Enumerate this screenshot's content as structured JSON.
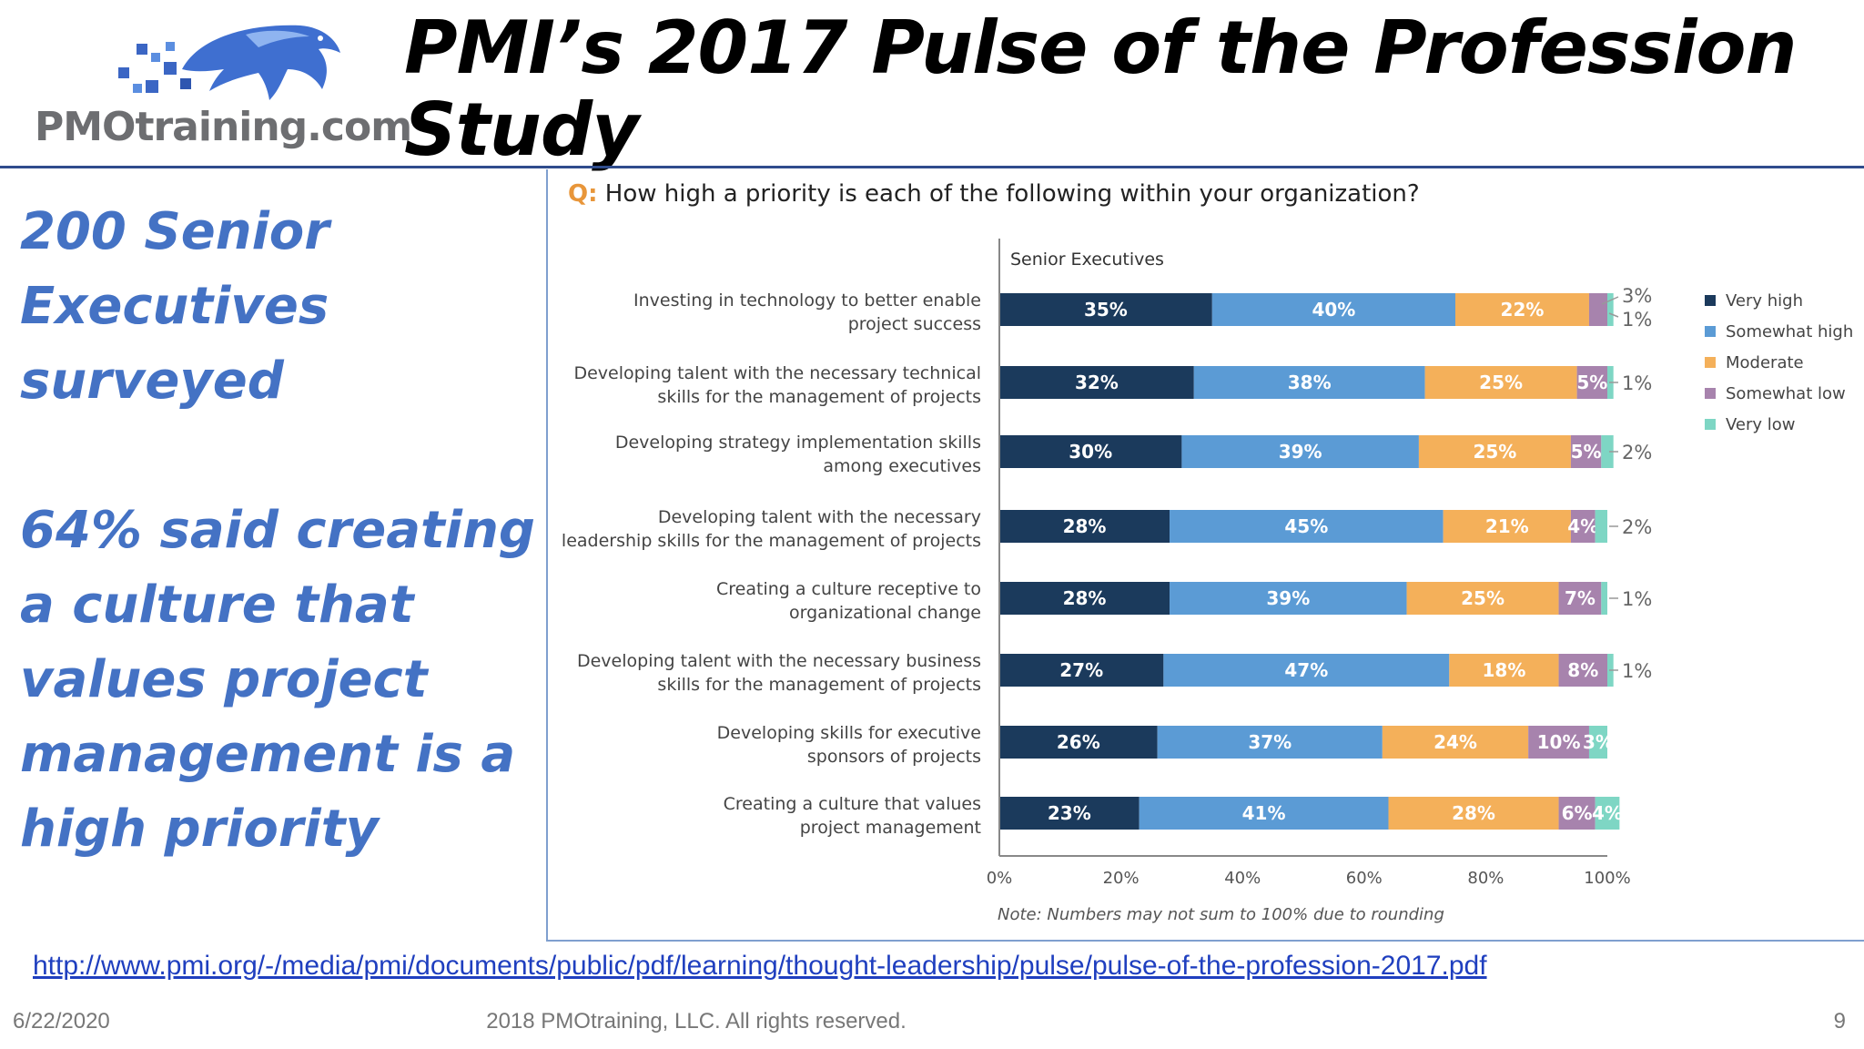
{
  "logo": {
    "text": "PMOtraining.com",
    "icon": "panther-pixel-logo"
  },
  "title": "PMI’s 2017 Pulse of the Profession Study",
  "left_text": {
    "line1": "200 Senior Executives surveyed",
    "line2": "64% said creating a culture that values project management is a high priority"
  },
  "question": {
    "prefix": "Q:",
    "text": "How high a priority is each of the following within your organization?"
  },
  "colors": {
    "very_high": "#1b3a5c",
    "somewhat_high": "#5b9bd5",
    "moderate": "#f4b05a",
    "somewhat_low": "#a783ad",
    "very_low": "#7ed6c4"
  },
  "chart_data": {
    "type": "bar",
    "orientation": "horizontal-stacked",
    "group_label": "Senior Executives",
    "note": "Note: Numbers may not sum to 100% due to rounding",
    "xlim": [
      0,
      100
    ],
    "x_ticks": [
      "0%",
      "20%",
      "40%",
      "60%",
      "80%",
      "100%"
    ],
    "legend_position": "right",
    "categories": [
      "Investing in technology to better enable project success",
      "Developing talent with the necessary technical skills for the management of projects",
      "Developing strategy implementation skills among executives",
      "Developing talent with the necessary leadership skills for the management of projects",
      "Creating a culture receptive to organizational change",
      "Developing talent with the necessary business skills for the management of projects",
      "Developing skills for executive sponsors of projects",
      "Creating a culture that values project management"
    ],
    "category_lines": [
      [
        "Investing in technology to better enable",
        "project success"
      ],
      [
        "Developing talent with the necessary technical",
        "skills for the management of projects"
      ],
      [
        "Developing strategy implementation skills",
        "among executives"
      ],
      [
        "Developing talent with the necessary",
        "leadership skills for the management of projects"
      ],
      [
        "Creating a culture receptive to",
        "organizational change"
      ],
      [
        "Developing talent with the necessary business",
        "skills for the management of projects"
      ],
      [
        "Developing skills for executive",
        "sponsors of projects"
      ],
      [
        "Creating a culture that values",
        "project management"
      ]
    ],
    "series": [
      {
        "name": "Very high",
        "values": [
          35,
          32,
          30,
          28,
          28,
          27,
          26,
          23
        ]
      },
      {
        "name": "Somewhat high",
        "values": [
          40,
          38,
          39,
          45,
          39,
          47,
          37,
          41
        ]
      },
      {
        "name": "Moderate",
        "values": [
          22,
          25,
          25,
          21,
          25,
          18,
          24,
          28
        ]
      },
      {
        "name": "Somewhat low",
        "values": [
          3,
          5,
          5,
          4,
          7,
          8,
          10,
          6
        ]
      },
      {
        "name": "Very low",
        "values": [
          1,
          1,
          2,
          2,
          1,
          1,
          3,
          4
        ]
      }
    ],
    "data_labels": [
      [
        "35%",
        "40%",
        "22%",
        "",
        ""
      ],
      [
        "32%",
        "38%",
        "25%",
        "5%",
        ""
      ],
      [
        "30%",
        "39%",
        "25%",
        "5%",
        ""
      ],
      [
        "28%",
        "45%",
        "21%",
        "4%",
        ""
      ],
      [
        "28%",
        "39%",
        "25%",
        "7%",
        ""
      ],
      [
        "27%",
        "47%",
        "18%",
        "8%",
        ""
      ],
      [
        "26%",
        "37%",
        "24%",
        "10%",
        "3%"
      ],
      [
        "23%",
        "41%",
        "28%",
        "6%",
        "4%"
      ]
    ],
    "callouts": [
      [
        "3%",
        "1%"
      ],
      [
        "1%"
      ],
      [
        "2%"
      ],
      [
        "2%"
      ],
      [
        "1%"
      ],
      [
        "1%"
      ],
      [],
      []
    ]
  },
  "source_link": "http://www.pmi.org/-/media/pmi/documents/public/pdf/learning/thought-leadership/pulse/pulse-of-the-profession-2017.pdf",
  "footer": {
    "date": "6/22/2020",
    "copyright": "2018 PMOtraining, LLC. All rights reserved.",
    "page": "9"
  }
}
